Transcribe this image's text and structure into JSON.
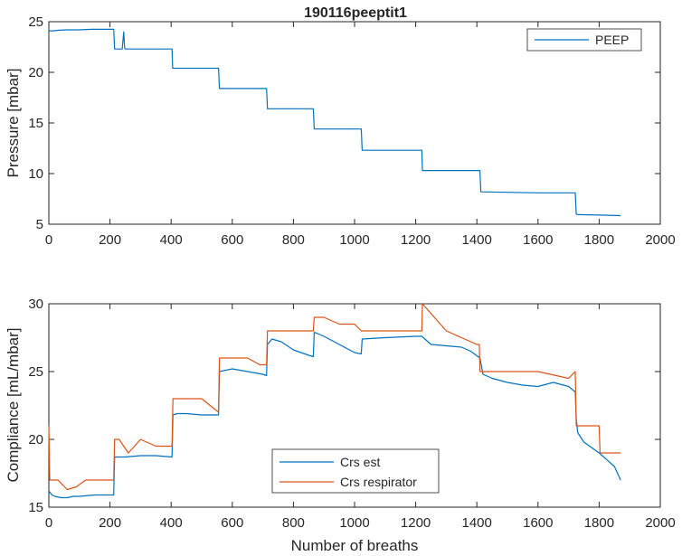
{
  "figure": {
    "title": "190116peeptit1"
  },
  "chart_data": [
    {
      "type": "line",
      "title": "190116peeptit1",
      "xlabel": "",
      "ylabel": "Pressure [mbar]",
      "xlim": [
        0,
        2000
      ],
      "ylim": [
        5,
        25
      ],
      "xticks": [
        0,
        200,
        400,
        600,
        800,
        1000,
        1200,
        1400,
        1600,
        1800,
        2000
      ],
      "yticks": [
        5,
        10,
        15,
        20,
        25
      ],
      "grid": false,
      "legend": {
        "position": "top-right",
        "entries": [
          "PEEP"
        ]
      },
      "series": [
        {
          "name": "PEEP",
          "color": "#0072BD",
          "x": [
            0,
            15,
            30,
            60,
            100,
            140,
            180,
            212,
            215,
            220,
            240,
            245,
            248,
            250,
            255,
            300,
            350,
            403,
            405,
            450,
            500,
            555,
            558,
            600,
            650,
            712,
            715,
            750,
            800,
            865,
            868,
            900,
            950,
            1000,
            1022,
            1025,
            1100,
            1150,
            1220,
            1222,
            1300,
            1350,
            1410,
            1413,
            1500,
            1600,
            1700,
            1722,
            1725,
            1730,
            1800,
            1870
          ],
          "y": [
            24.1,
            24.1,
            24.15,
            24.2,
            24.2,
            24.25,
            24.25,
            24.25,
            22.3,
            22.3,
            22.3,
            24.0,
            22.4,
            22.3,
            22.3,
            22.3,
            22.3,
            22.3,
            20.4,
            20.4,
            20.4,
            20.4,
            18.4,
            18.4,
            18.4,
            18.4,
            16.4,
            16.4,
            16.4,
            16.4,
            14.4,
            14.4,
            14.4,
            14.4,
            14.4,
            12.3,
            12.3,
            12.3,
            12.3,
            10.3,
            10.3,
            10.3,
            10.3,
            8.2,
            8.15,
            8.1,
            8.1,
            8.1,
            6.0,
            5.95,
            5.9,
            5.85
          ]
        }
      ]
    },
    {
      "type": "line",
      "title": "",
      "xlabel": "Number of breaths",
      "ylabel": "Compliance [mL/mbar]",
      "xlim": [
        0,
        2000
      ],
      "ylim": [
        15,
        30
      ],
      "xticks": [
        0,
        200,
        400,
        600,
        800,
        1000,
        1200,
        1400,
        1600,
        1800,
        2000
      ],
      "yticks": [
        15,
        20,
        25,
        30
      ],
      "grid": false,
      "legend": {
        "position": "bottom-center",
        "entries": [
          "Crs est",
          "Crs respirator"
        ]
      },
      "series": [
        {
          "name": "Crs est",
          "color": "#0072BD",
          "x": [
            0,
            10,
            20,
            40,
            60,
            80,
            100,
            150,
            212,
            215,
            250,
            300,
            350,
            403,
            406,
            420,
            450,
            500,
            555,
            558,
            600,
            650,
            700,
            712,
            715,
            730,
            760,
            800,
            850,
            865,
            868,
            900,
            950,
            1000,
            1022,
            1025,
            1100,
            1200,
            1220,
            1250,
            1300,
            1350,
            1380,
            1410,
            1420,
            1450,
            1500,
            1550,
            1600,
            1650,
            1700,
            1722,
            1725,
            1730,
            1750,
            1800,
            1850,
            1870
          ],
          "y": [
            16.2,
            15.9,
            15.8,
            15.7,
            15.7,
            15.8,
            15.8,
            15.9,
            15.9,
            18.7,
            18.7,
            18.8,
            18.8,
            18.7,
            21.8,
            21.9,
            21.9,
            21.8,
            21.8,
            25.0,
            25.2,
            25.0,
            24.8,
            24.7,
            27.0,
            27.4,
            27.2,
            26.6,
            26.2,
            26.1,
            27.9,
            27.6,
            27.0,
            26.4,
            26.3,
            27.4,
            27.5,
            27.6,
            27.6,
            27.0,
            26.9,
            26.8,
            26.5,
            26.0,
            24.8,
            24.5,
            24.2,
            24.0,
            23.9,
            24.2,
            23.9,
            23.5,
            21.5,
            20.5,
            19.8,
            19.0,
            18.0,
            17.0
          ]
        },
        {
          "name": "Crs respirator",
          "color": "#D95319",
          "x": [
            0,
            3,
            6,
            30,
            60,
            90,
            120,
            150,
            212,
            215,
            230,
            260,
            300,
            350,
            403,
            406,
            450,
            500,
            555,
            558,
            600,
            650,
            690,
            712,
            715,
            750,
            800,
            865,
            868,
            900,
            950,
            1000,
            1022,
            1025,
            1100,
            1200,
            1220,
            1222,
            1300,
            1350,
            1400,
            1408,
            1410,
            1413,
            1500,
            1600,
            1700,
            1722,
            1725,
            1750,
            1800,
            1803,
            1870
          ],
          "y": [
            21.0,
            17.0,
            17.0,
            17.0,
            16.3,
            16.5,
            17.0,
            17.0,
            17.0,
            20.0,
            20.0,
            19.0,
            20.0,
            19.5,
            19.5,
            23.0,
            23.0,
            23.0,
            22.0,
            26.0,
            26.0,
            26.0,
            25.5,
            25.5,
            28.0,
            28.0,
            28.0,
            28.0,
            29.0,
            29.0,
            28.5,
            28.5,
            28.0,
            28.0,
            28.0,
            28.0,
            28.0,
            30.0,
            28.0,
            27.5,
            27.0,
            27.0,
            25.0,
            25.0,
            25.0,
            25.0,
            24.5,
            25.0,
            21.0,
            21.0,
            21.0,
            19.0,
            19.0
          ]
        }
      ]
    }
  ]
}
